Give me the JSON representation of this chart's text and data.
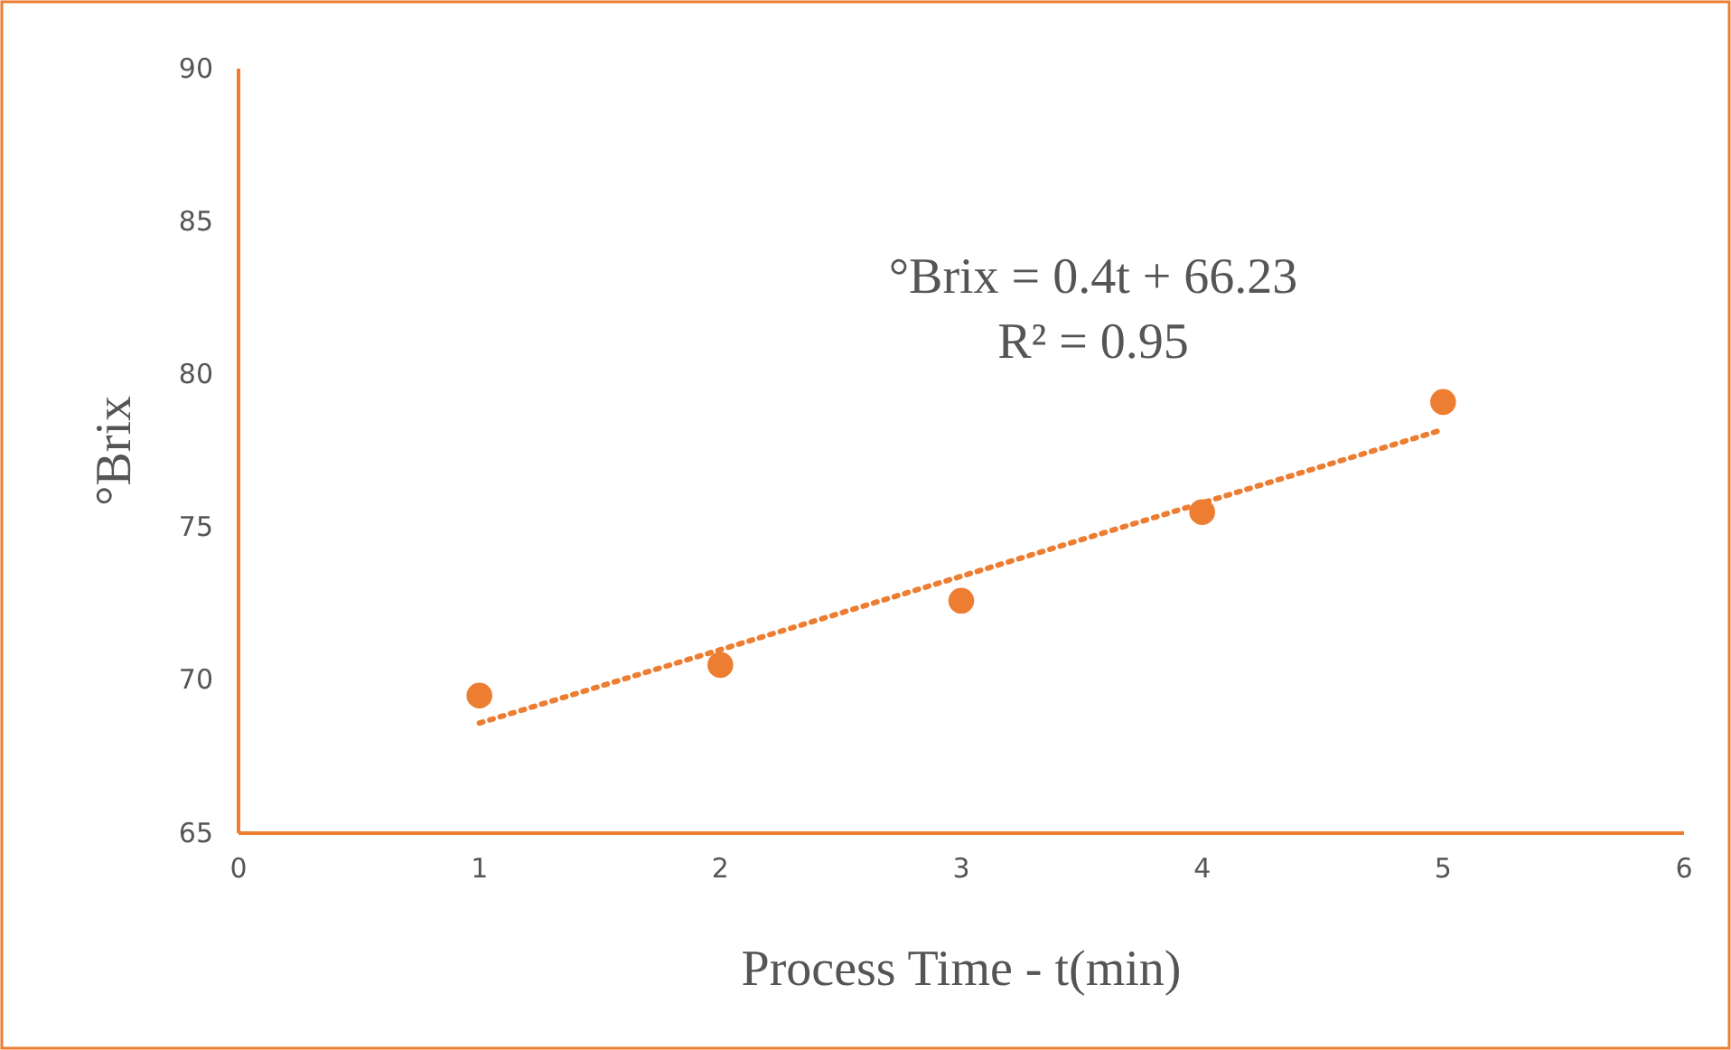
{
  "chart_data": {
    "type": "scatter",
    "xlabel": "Process Time - t(min)",
    "ylabel": "°Brix",
    "x": [
      1,
      2,
      3,
      4,
      5
    ],
    "series": [
      {
        "color": "#ed7d31",
        "marker": "circle",
        "values": [
          69.5,
          70.5,
          72.6,
          75.5,
          79.1
        ]
      },
      {
        "type": "line",
        "color": "#ed7d31",
        "line_style": "dotted",
        "x": [
          1,
          5
        ],
        "values": [
          68.6,
          78.2
        ]
      }
    ],
    "annotations": [
      "°Brix  = 0.4t + 66.23",
      "R² = 0.95"
    ],
    "xlim": [
      0,
      6
    ],
    "xticks": [
      0,
      1,
      2,
      3,
      4,
      5,
      6
    ],
    "ylim": [
      65,
      90
    ],
    "yticks": [
      65,
      70,
      75,
      80,
      85,
      90
    ],
    "grid": false
  }
}
